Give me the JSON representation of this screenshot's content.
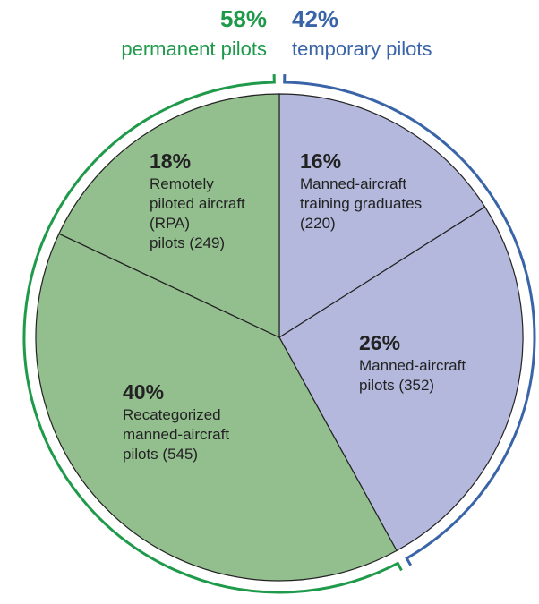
{
  "chart_data": {
    "type": "pie",
    "categories": [
      "Manned-aircraft\ntraining graduates\n(220)",
      "Manned-aircraft\npilots (352)",
      "Recategorized\nmanned-aircraft\npilots (545)",
      "Remotely\npiloted aircraft\n(RPA)\npilots (249)"
    ],
    "values": [
      16,
      26,
      40,
      18
    ],
    "value_labels": [
      "16%",
      "26%",
      "40%",
      "18%"
    ],
    "colors": [
      "#b3b8dc",
      "#b3b8dc",
      "#93bf8f",
      "#93bf8f"
    ],
    "groups": [
      {
        "name": "temporary pilots",
        "value": 42,
        "value_label": "42%",
        "color": "#3a64a8"
      },
      {
        "name": "permanent pilots",
        "value": 58,
        "value_label": "58%",
        "color": "#1e9a4a"
      }
    ]
  }
}
